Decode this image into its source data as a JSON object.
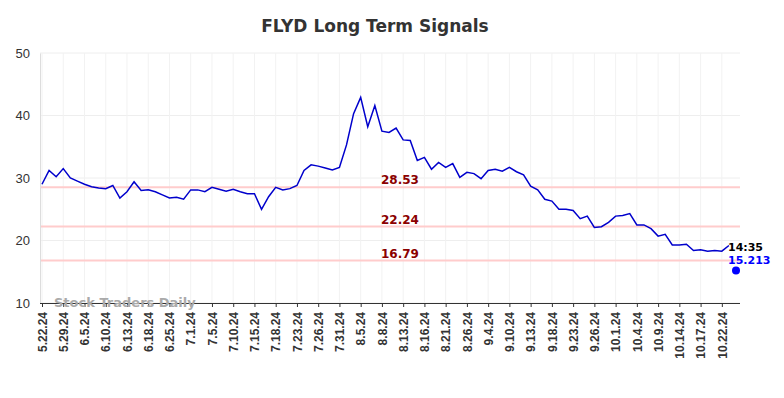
{
  "chart_data": {
    "type": "line",
    "title": "FLYD Long Term Signals",
    "categories": [
      "5.22.24",
      null,
      null,
      "5.29.24",
      null,
      null,
      "6.5.24",
      null,
      null,
      "6.10.24",
      null,
      null,
      "6.13.24",
      null,
      null,
      "6.18.24",
      null,
      null,
      "6.25.24",
      null,
      null,
      "7.1.24",
      null,
      null,
      "7.5.24",
      null,
      null,
      "7.10.24",
      null,
      null,
      "7.15.24",
      null,
      null,
      "7.18.24",
      null,
      null,
      "7.23.24",
      null,
      null,
      "7.26.24",
      null,
      null,
      "7.31.24",
      null,
      null,
      "8.5.24",
      null,
      null,
      "8.8.24",
      null,
      null,
      "8.13.24",
      null,
      null,
      "8.16.24",
      null,
      null,
      "8.21.24",
      null,
      null,
      "8.26.24",
      null,
      null,
      "9.4.24",
      null,
      null,
      "9.10.24",
      null,
      null,
      "9.13.24",
      null,
      null,
      "9.18.24",
      null,
      null,
      "9.23.24",
      null,
      null,
      "9.26.24",
      null,
      null,
      "10.1.24",
      null,
      null,
      "10.4.24",
      null,
      null,
      "10.9.24",
      null,
      null,
      "10.14.24",
      null,
      null,
      "10.17.24",
      null,
      null,
      "10.22.24",
      null,
      null
    ],
    "series": [
      {
        "color": "#0000cc",
        "line_style": "solid",
        "values": [
          29.0,
          31.2,
          30.2,
          31.5,
          30.0,
          29.5,
          29.0,
          28.6,
          28.4,
          28.3,
          28.8,
          26.8,
          27.8,
          29.4,
          28.0,
          28.1,
          27.8,
          27.3,
          26.8,
          26.9,
          26.6,
          28.1,
          28.1,
          27.8,
          28.5,
          28.2,
          27.9,
          28.2,
          27.8,
          27.5,
          27.5,
          25.0,
          27.0,
          28.5,
          28.1,
          28.3,
          28.8,
          31.2,
          32.1,
          31.9,
          31.6,
          31.3,
          31.7,
          35.3,
          40.3,
          42.9,
          38.2,
          41.6,
          37.5,
          37.3,
          38.0,
          36.1,
          36.0,
          32.8,
          33.3,
          31.4,
          32.5,
          31.7,
          32.3,
          30.1,
          30.9,
          30.7,
          29.9,
          31.2,
          31.4,
          31.1,
          31.7,
          31.0,
          30.5,
          28.7,
          28.1,
          26.6,
          26.3,
          25.0,
          25.0,
          24.8,
          23.5,
          23.9,
          22.1,
          22.2,
          22.9,
          23.9,
          24.0,
          24.3,
          22.5,
          22.5,
          21.9,
          20.7,
          21.0,
          19.3,
          19.3,
          19.4,
          18.4,
          18.5,
          18.3,
          18.4,
          18.3,
          19.2,
          null
        ]
      },
      {
        "color": "#0000ff",
        "type": "scatter",
        "marker": "circle",
        "data_labels": true,
        "values": [
          null,
          null,
          null,
          null,
          null,
          null,
          null,
          null,
          null,
          null,
          null,
          null,
          null,
          null,
          null,
          null,
          null,
          null,
          null,
          null,
          null,
          null,
          null,
          null,
          null,
          null,
          null,
          null,
          null,
          null,
          null,
          null,
          null,
          null,
          null,
          null,
          null,
          null,
          null,
          null,
          null,
          null,
          null,
          null,
          null,
          null,
          null,
          null,
          null,
          null,
          null,
          null,
          null,
          null,
          null,
          null,
          null,
          null,
          null,
          null,
          null,
          null,
          null,
          null,
          null,
          null,
          null,
          null,
          null,
          null,
          null,
          null,
          null,
          null,
          null,
          null,
          null,
          null,
          null,
          null,
          null,
          null,
          null,
          null,
          null,
          null,
          null,
          null,
          null,
          null,
          null,
          null,
          null,
          null,
          null,
          null,
          null,
          null,
          15.213
        ]
      }
    ],
    "reference_lines": [
      {
        "value": 28.53,
        "color": "#ffcccc"
      },
      {
        "value": 22.24,
        "color": "#ffcccc"
      },
      {
        "value": 16.79,
        "color": "#ffcccc"
      }
    ],
    "annotations": [
      "14:35",
      "Stock Traders Daily"
    ],
    "ylim": [
      10,
      50
    ],
    "yticks": [
      10,
      20,
      30,
      40,
      50
    ],
    "grid": true
  }
}
